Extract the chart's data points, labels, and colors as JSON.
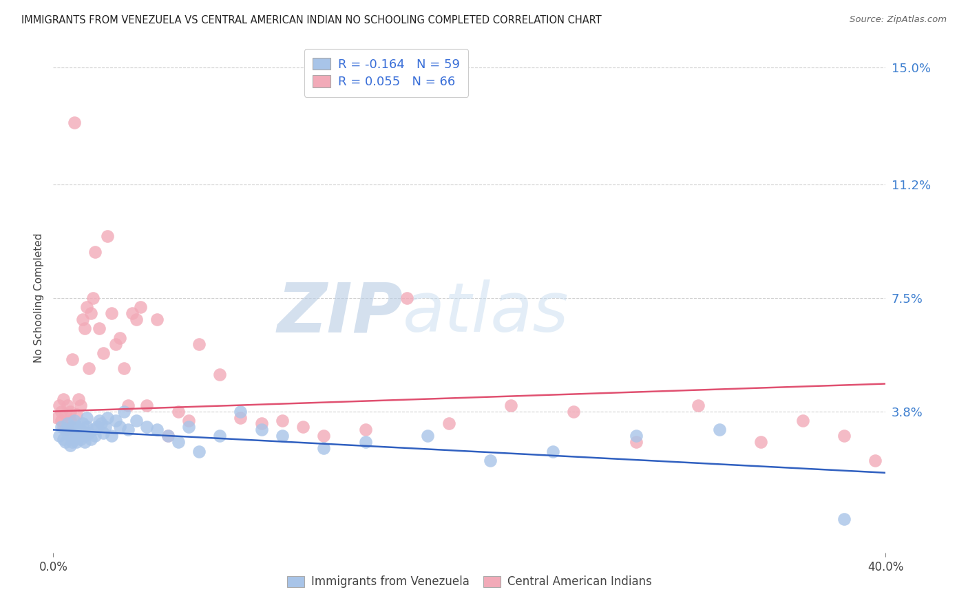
{
  "title": "IMMIGRANTS FROM VENEZUELA VS CENTRAL AMERICAN INDIAN NO SCHOOLING COMPLETED CORRELATION CHART",
  "source": "Source: ZipAtlas.com",
  "ylabel": "No Schooling Completed",
  "ytick_labels": [
    "15.0%",
    "11.2%",
    "7.5%",
    "3.8%"
  ],
  "ytick_values": [
    0.15,
    0.112,
    0.075,
    0.038
  ],
  "xmin": 0.0,
  "xmax": 0.4,
  "ymin": -0.008,
  "ymax": 0.158,
  "legend_blue_r": "-0.164",
  "legend_blue_n": "59",
  "legend_pink_r": "0.055",
  "legend_pink_n": "66",
  "blue_color": "#a8c4e8",
  "pink_color": "#f2aab8",
  "line_blue_color": "#3060c0",
  "line_pink_color": "#e05070",
  "grid_color": "#d0d0d0",
  "background_color": "#ffffff",
  "blue_scatter_x": [
    0.003,
    0.004,
    0.005,
    0.006,
    0.006,
    0.007,
    0.007,
    0.008,
    0.008,
    0.009,
    0.009,
    0.01,
    0.01,
    0.011,
    0.011,
    0.012,
    0.012,
    0.013,
    0.013,
    0.014,
    0.014,
    0.015,
    0.015,
    0.016,
    0.016,
    0.017,
    0.018,
    0.019,
    0.02,
    0.021,
    0.022,
    0.023,
    0.024,
    0.025,
    0.026,
    0.028,
    0.03,
    0.032,
    0.034,
    0.036,
    0.04,
    0.045,
    0.05,
    0.055,
    0.06,
    0.065,
    0.07,
    0.08,
    0.09,
    0.1,
    0.11,
    0.13,
    0.15,
    0.18,
    0.21,
    0.24,
    0.28,
    0.32,
    0.38
  ],
  "blue_scatter_y": [
    0.03,
    0.033,
    0.029,
    0.032,
    0.028,
    0.031,
    0.034,
    0.03,
    0.027,
    0.033,
    0.028,
    0.032,
    0.035,
    0.03,
    0.028,
    0.033,
    0.03,
    0.029,
    0.032,
    0.031,
    0.034,
    0.028,
    0.03,
    0.033,
    0.036,
    0.031,
    0.029,
    0.032,
    0.03,
    0.033,
    0.035,
    0.034,
    0.031,
    0.033,
    0.036,
    0.03,
    0.035,
    0.033,
    0.038,
    0.032,
    0.035,
    0.033,
    0.032,
    0.03,
    0.028,
    0.033,
    0.025,
    0.03,
    0.038,
    0.032,
    0.03,
    0.026,
    0.028,
    0.03,
    0.022,
    0.025,
    0.03,
    0.032,
    0.003
  ],
  "pink_scatter_x": [
    0.002,
    0.003,
    0.004,
    0.004,
    0.005,
    0.005,
    0.006,
    0.007,
    0.007,
    0.008,
    0.008,
    0.009,
    0.01,
    0.011,
    0.012,
    0.013,
    0.014,
    0.015,
    0.016,
    0.017,
    0.018,
    0.019,
    0.02,
    0.022,
    0.024,
    0.026,
    0.028,
    0.03,
    0.032,
    0.034,
    0.036,
    0.038,
    0.04,
    0.042,
    0.045,
    0.05,
    0.055,
    0.06,
    0.065,
    0.07,
    0.08,
    0.09,
    0.1,
    0.11,
    0.12,
    0.13,
    0.15,
    0.17,
    0.19,
    0.22,
    0.25,
    0.28,
    0.31,
    0.34,
    0.36,
    0.38,
    0.395
  ],
  "pink_scatter_y": [
    0.036,
    0.04,
    0.035,
    0.038,
    0.042,
    0.033,
    0.037,
    0.04,
    0.032,
    0.035,
    0.038,
    0.055,
    0.132,
    0.037,
    0.042,
    0.04,
    0.068,
    0.065,
    0.072,
    0.052,
    0.07,
    0.075,
    0.09,
    0.065,
    0.057,
    0.095,
    0.07,
    0.06,
    0.062,
    0.052,
    0.04,
    0.07,
    0.068,
    0.072,
    0.04,
    0.068,
    0.03,
    0.038,
    0.035,
    0.06,
    0.05,
    0.036,
    0.034,
    0.035,
    0.033,
    0.03,
    0.032,
    0.075,
    0.034,
    0.04,
    0.038,
    0.028,
    0.04,
    0.028,
    0.035,
    0.03,
    0.022
  ],
  "blue_trend_y_start": 0.032,
  "blue_trend_y_end": 0.018,
  "pink_trend_y_start": 0.038,
  "pink_trend_y_end": 0.047
}
